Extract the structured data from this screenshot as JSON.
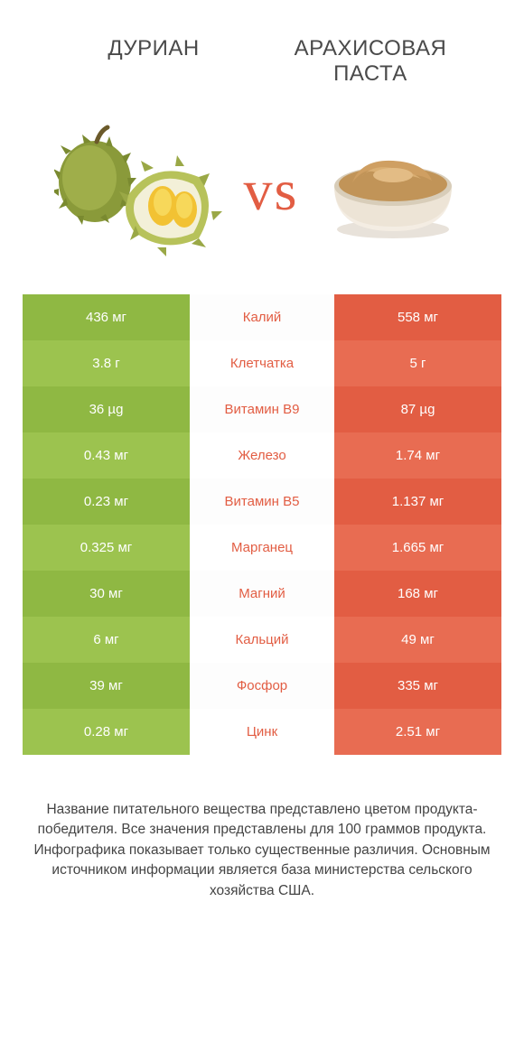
{
  "titles": {
    "left": "ДУРИАН",
    "right": "АРАХИСОВАЯ ПАСТА"
  },
  "vs": "vs",
  "colors": {
    "left_a": "#8fb843",
    "left_b": "#9cc34f",
    "right_a": "#e25d43",
    "right_b": "#e86c52",
    "mid_winner_right": "#e25d43",
    "mid_winner_left": "#8fb843"
  },
  "rows": [
    {
      "left": "436 мг",
      "mid": "Калий",
      "right": "558 мг",
      "winner": "right"
    },
    {
      "left": "3.8 г",
      "mid": "Клетчатка",
      "right": "5 г",
      "winner": "right"
    },
    {
      "left": "36 µg",
      "mid": "Витамин B9",
      "right": "87 µg",
      "winner": "right"
    },
    {
      "left": "0.43 мг",
      "mid": "Железо",
      "right": "1.74 мг",
      "winner": "right"
    },
    {
      "left": "0.23 мг",
      "mid": "Витамин B5",
      "right": "1.137 мг",
      "winner": "right"
    },
    {
      "left": "0.325 мг",
      "mid": "Марганец",
      "right": "1.665 мг",
      "winner": "right"
    },
    {
      "left": "30 мг",
      "mid": "Магний",
      "right": "168 мг",
      "winner": "right"
    },
    {
      "left": "6 мг",
      "mid": "Кальций",
      "right": "49 мг",
      "winner": "right"
    },
    {
      "left": "39 мг",
      "mid": "Фосфор",
      "right": "335 мг",
      "winner": "right"
    },
    {
      "left": "0.28 мг",
      "mid": "Цинк",
      "right": "2.51 мг",
      "winner": "right"
    }
  ],
  "footer": [
    "Название питательного вещества представлено цветом продукта-победителя.",
    "Все значения представлены для 100 граммов продукта.",
    "Инфографика показывает только существенные различия.",
    "Основным источником информации является база министерства сельского хозяйства США."
  ]
}
